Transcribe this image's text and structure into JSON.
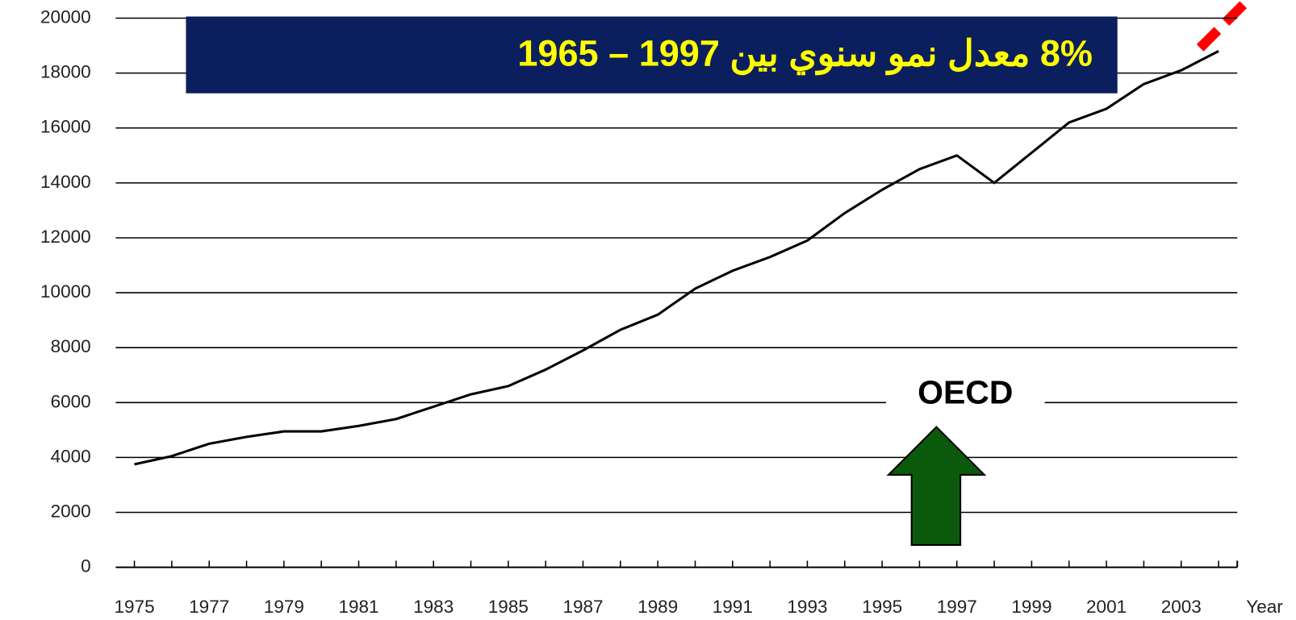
{
  "chart_data": {
    "type": "line",
    "title": "8% معدل نمو سنوي بين 1997 – 1965",
    "x_label": "Year",
    "annotation": "OECD",
    "categories": [
      "1975",
      null,
      "1977",
      null,
      "1979",
      null,
      "1981",
      null,
      "1983",
      null,
      "1985",
      null,
      "1987",
      null,
      "1989",
      null,
      "1991",
      null,
      "1993",
      null,
      "1995",
      null,
      "1997",
      null,
      "1999",
      null,
      "2001",
      null,
      "2003",
      null
    ],
    "series": [
      {
        "color": "#000000",
        "values": [
          3750,
          4050,
          4500,
          4750,
          4950,
          4950,
          5150,
          5400,
          5850,
          6300,
          6600,
          7200,
          7900,
          8650,
          9200,
          10150,
          10800,
          11300,
          11900,
          12900,
          13750,
          14500,
          15000,
          14000,
          15100,
          16200,
          16700,
          17600,
          18100,
          18800
        ]
      }
    ],
    "ylim": [
      0,
      20000
    ],
    "yticks": [
      0,
      2000,
      4000,
      6000,
      8000,
      10000,
      12000,
      14000,
      16000,
      18000,
      20000
    ],
    "grid": true
  }
}
